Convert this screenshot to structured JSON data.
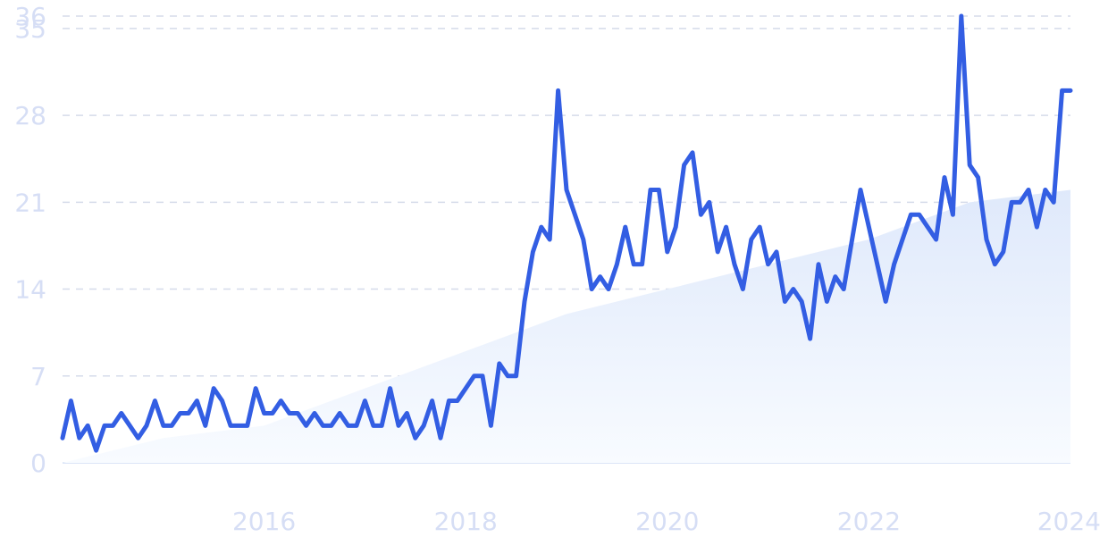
{
  "chart_data": {
    "type": "line",
    "title": "",
    "xlabel": "",
    "ylabel": "",
    "xlim": [
      "2014-01",
      "2024-01"
    ],
    "ylim": [
      0,
      36
    ],
    "grid": true,
    "colors": {
      "line": "#335ee3",
      "trend_area_top": "#dfe9fb",
      "trend_area_bottom": "#f8fbff",
      "grid": "#d5dbea",
      "tick_text": "#d6def5"
    },
    "y_ticks": [
      {
        "label": "0",
        "value": 0
      },
      {
        "label": "7",
        "value": 7
      },
      {
        "label": "14",
        "value": 14
      },
      {
        "label": "21",
        "value": 21
      },
      {
        "label": "28",
        "value": 28
      },
      {
        "label": "35",
        "value": 35
      },
      {
        "label": "36",
        "value": 36
      }
    ],
    "x_ticks": [
      {
        "label": "2016",
        "value": "2016-01"
      },
      {
        "label": "2018",
        "value": "2018-01"
      },
      {
        "label": "2020",
        "value": "2020-01"
      },
      {
        "label": "2022",
        "value": "2022-01"
      },
      {
        "label": "2024",
        "value": "2024-01"
      }
    ],
    "series": [
      {
        "x": [
          "2014-01",
          "2014-02",
          "2014-03",
          "2014-04",
          "2014-05",
          "2014-06",
          "2014-07",
          "2014-08",
          "2014-09",
          "2014-10",
          "2014-11",
          "2014-12",
          "2015-01",
          "2015-02",
          "2015-03",
          "2015-04",
          "2015-05",
          "2015-06",
          "2015-07",
          "2015-08",
          "2015-09",
          "2015-10",
          "2015-11",
          "2015-12",
          "2016-01",
          "2016-02",
          "2016-03",
          "2016-04",
          "2016-05",
          "2016-06",
          "2016-07",
          "2016-08",
          "2016-09",
          "2016-10",
          "2016-11",
          "2016-12",
          "2017-01",
          "2017-02",
          "2017-03",
          "2017-04",
          "2017-05",
          "2017-06",
          "2017-07",
          "2017-08",
          "2017-09",
          "2017-10",
          "2017-11",
          "2017-12",
          "2018-01",
          "2018-02",
          "2018-03",
          "2018-04",
          "2018-05",
          "2018-06",
          "2018-07",
          "2018-08",
          "2018-09",
          "2018-10",
          "2018-11",
          "2018-12",
          "2019-01",
          "2019-02",
          "2019-03",
          "2019-04",
          "2019-05",
          "2019-06",
          "2019-07",
          "2019-08",
          "2019-09",
          "2019-10",
          "2019-11",
          "2019-12",
          "2020-01",
          "2020-02",
          "2020-03",
          "2020-04",
          "2020-05",
          "2020-06",
          "2020-07",
          "2020-08",
          "2020-09",
          "2020-10",
          "2020-11",
          "2020-12",
          "2021-01",
          "2021-02",
          "2021-03",
          "2021-04",
          "2021-05",
          "2021-06",
          "2021-07",
          "2021-08",
          "2021-09",
          "2021-10",
          "2021-11",
          "2021-12",
          "2022-01",
          "2022-02",
          "2022-03",
          "2022-04",
          "2022-05",
          "2022-06",
          "2022-07",
          "2022-08",
          "2022-09",
          "2022-10",
          "2022-11",
          "2022-12",
          "2023-01",
          "2023-02",
          "2023-03",
          "2023-04",
          "2023-05",
          "2023-06",
          "2023-07",
          "2023-08",
          "2023-09",
          "2023-10",
          "2023-11",
          "2023-12",
          "2024-01"
        ],
        "values": [
          2,
          5,
          2,
          3,
          1,
          3,
          3,
          4,
          3,
          2,
          3,
          5,
          3,
          3,
          4,
          4,
          5,
          3,
          6,
          5,
          3,
          3,
          3,
          6,
          4,
          4,
          5,
          4,
          4,
          3,
          4,
          3,
          3,
          4,
          3,
          3,
          5,
          3,
          3,
          6,
          3,
          4,
          2,
          3,
          5,
          2,
          5,
          5,
          6,
          7,
          7,
          3,
          8,
          7,
          7,
          13,
          17,
          19,
          18,
          30,
          22,
          20,
          18,
          14,
          15,
          14,
          16,
          19,
          16,
          16,
          22,
          22,
          17,
          19,
          24,
          25,
          20,
          21,
          17,
          19,
          16,
          14,
          18,
          19,
          16,
          17,
          13,
          14,
          13,
          10,
          16,
          13,
          15,
          14,
          18,
          22,
          19,
          16,
          13,
          16,
          18,
          20,
          20,
          19,
          18,
          23,
          20,
          36,
          24,
          23,
          18,
          16,
          17,
          21,
          21,
          22,
          19,
          22,
          21,
          30,
          30
        ]
      }
    ],
    "trend": {
      "x": [
        "2014-01",
        "2015-01",
        "2016-01",
        "2017-01",
        "2018-01",
        "2019-01",
        "2020-01",
        "2021-01",
        "2022-01",
        "2023-01",
        "2024-01"
      ],
      "values": [
        0,
        2,
        3,
        6,
        9,
        12,
        14,
        16,
        18,
        21,
        22
      ]
    }
  }
}
